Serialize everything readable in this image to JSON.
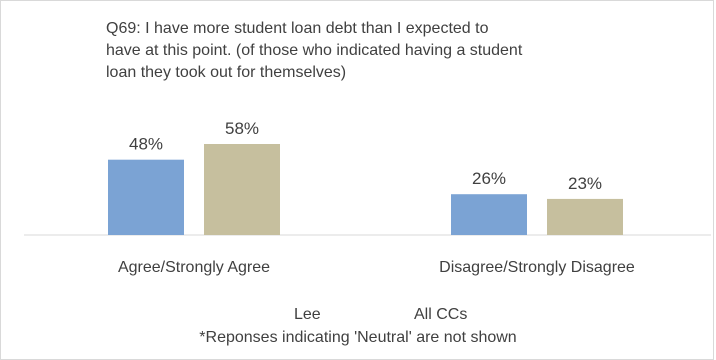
{
  "chart_data": {
    "type": "bar",
    "title": "Q69: I have more student loan debt than I expected to have at this point. (of those who indicated having a student loan they took out for themselves)",
    "categories": [
      "Agree/Strongly Agree",
      "Disagree/Strongly Disagree"
    ],
    "series": [
      {
        "name": "Lee",
        "values": [
          48,
          26
        ],
        "labels": [
          "48%",
          "26%"
        ],
        "color": "#7ba3d4"
      },
      {
        "name": "All CCs",
        "values": [
          58,
          23
        ],
        "labels": [
          "58%",
          "23%"
        ],
        "color": "#c6bf9e"
      }
    ],
    "ylim": [
      0,
      70
    ],
    "grid": false,
    "legend_position": "bottom",
    "footnote": "*Reponses indicating 'Neutral' are not shown"
  }
}
